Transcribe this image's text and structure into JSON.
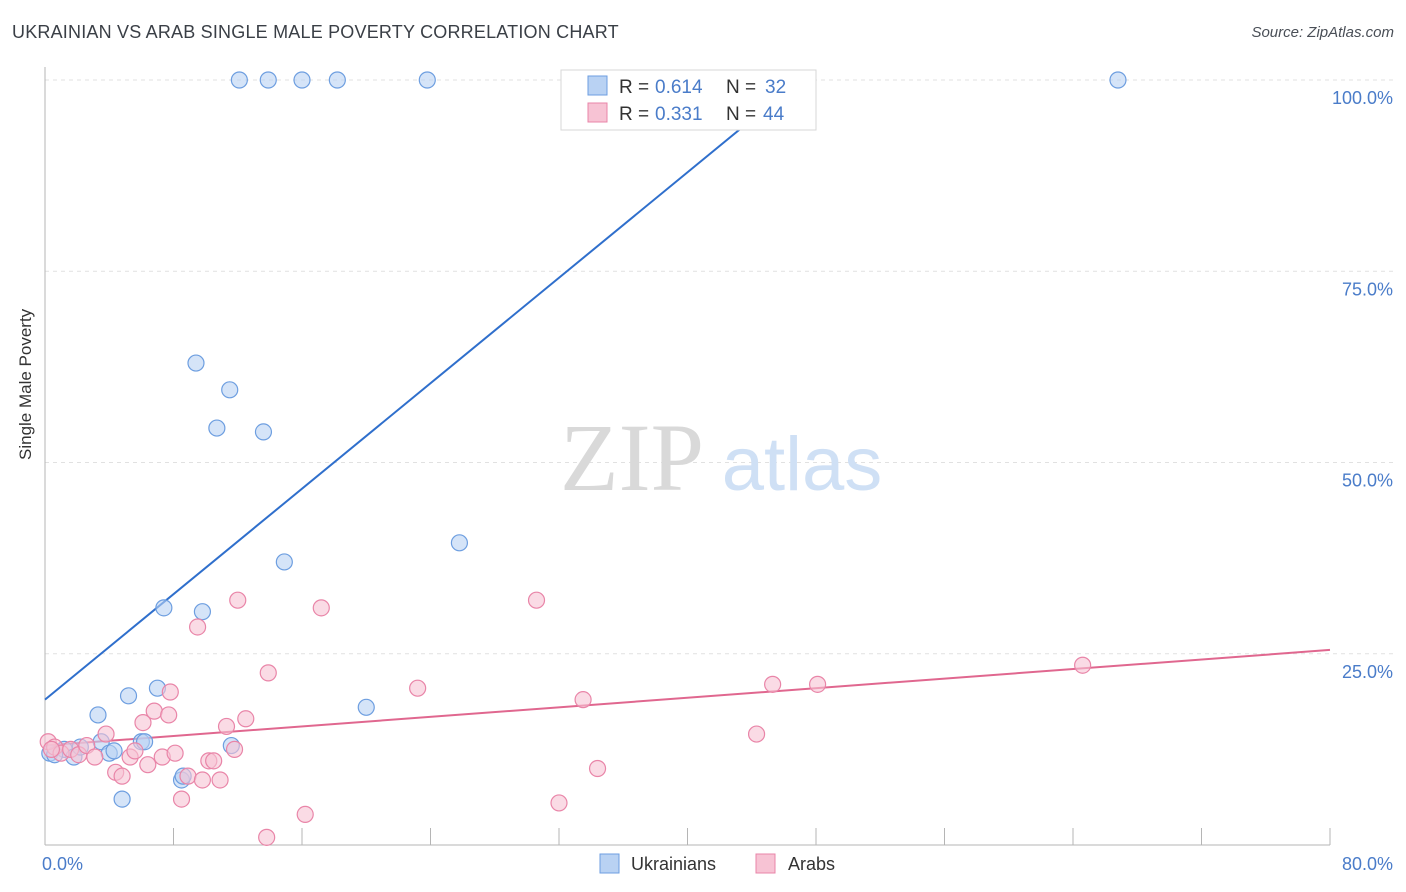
{
  "header": {
    "title": "UKRAINIAN VS ARAB SINGLE MALE POVERTY CORRELATION CHART",
    "source": "Source: ZipAtlas.com"
  },
  "watermark": {
    "zip": "ZIP",
    "atlas": "atlas"
  },
  "colors": {
    "blue": "#6d9ee0",
    "blue_fill": "#b9d2f3",
    "blue_line": "#2f6fcc",
    "pink": "#e985a8",
    "pink_fill": "#f7c3d4",
    "pink_line": "#e0678f",
    "axis_text": "#4a7cc9",
    "grid": "#e1e1e1"
  },
  "chart_data": {
    "type": "scatter",
    "title": "UKRAINIAN VS ARAB SINGLE MALE POVERTY CORRELATION CHART",
    "xlabel": "",
    "ylabel": "Single Male Poverty",
    "xlim": [
      0,
      80
    ],
    "ylim": [
      0,
      100
    ],
    "x_tick_labels": [
      "0.0%",
      "80.0%"
    ],
    "y_ticks": [
      25,
      50,
      75,
      100
    ],
    "y_tick_labels": [
      "25.0%",
      "50.0%",
      "75.0%",
      "100.0%"
    ],
    "grid": true,
    "legend_position": "top-center",
    "stats": [
      {
        "r_label": "R = ",
        "r_value": "0.614",
        "n_label": "N = ",
        "n_value": "32"
      },
      {
        "r_label": "R = ",
        "r_value": "0.331",
        "n_label": "N = ",
        "n_value": "44"
      }
    ],
    "series": [
      {
        "name": "Ukrainians",
        "color": "#6d9ee0",
        "trend": {
          "x0": 0,
          "y0": 19,
          "x1": 47,
          "y1": 100
        },
        "points": [
          [
            0.3,
            12
          ],
          [
            1.2,
            12.5
          ],
          [
            1.8,
            11.5
          ],
          [
            3.3,
            17
          ],
          [
            3.5,
            13.5
          ],
          [
            4.0,
            12
          ],
          [
            4.3,
            12.3
          ],
          [
            5.2,
            19.5
          ],
          [
            6.0,
            13.5
          ],
          [
            6.2,
            13.5
          ],
          [
            7.0,
            20.5
          ],
          [
            7.4,
            31
          ],
          [
            8.5,
            8.5
          ],
          [
            8.6,
            9
          ],
          [
            9.4,
            63
          ],
          [
            9.8,
            30.5
          ],
          [
            10.7,
            54.5
          ],
          [
            11.5,
            59.5
          ],
          [
            11.6,
            13
          ],
          [
            12.1,
            100
          ],
          [
            13.6,
            54
          ],
          [
            13.9,
            100
          ],
          [
            14.9,
            37
          ],
          [
            16.0,
            100
          ],
          [
            18.2,
            100
          ],
          [
            20.0,
            18
          ],
          [
            23.8,
            100
          ],
          [
            25.8,
            39.5
          ],
          [
            66.8,
            100
          ],
          [
            0.6,
            11.8
          ],
          [
            2.2,
            12.8
          ],
          [
            4.8,
            6
          ]
        ]
      },
      {
        "name": "Arabs",
        "color": "#e985a8",
        "trend": {
          "x0": 0,
          "y0": 13,
          "x1": 80,
          "y1": 25.5
        },
        "points": [
          [
            0.2,
            13.5
          ],
          [
            0.6,
            12.8
          ],
          [
            1.0,
            12
          ],
          [
            1.6,
            12.5
          ],
          [
            2.1,
            11.8
          ],
          [
            2.6,
            13
          ],
          [
            3.1,
            11.5
          ],
          [
            3.8,
            14.5
          ],
          [
            4.4,
            9.5
          ],
          [
            4.8,
            9
          ],
          [
            5.3,
            11.5
          ],
          [
            5.6,
            12.3
          ],
          [
            6.1,
            16
          ],
          [
            6.4,
            10.5
          ],
          [
            6.8,
            17.5
          ],
          [
            7.3,
            11.5
          ],
          [
            7.7,
            17
          ],
          [
            7.8,
            20
          ],
          [
            8.1,
            12
          ],
          [
            8.5,
            6
          ],
          [
            8.9,
            9
          ],
          [
            9.5,
            28.5
          ],
          [
            9.8,
            8.5
          ],
          [
            10.2,
            11
          ],
          [
            10.5,
            11
          ],
          [
            10.9,
            8.5
          ],
          [
            11.3,
            15.5
          ],
          [
            11.8,
            12.5
          ],
          [
            12.0,
            32
          ],
          [
            12.5,
            16.5
          ],
          [
            13.8,
            1
          ],
          [
            13.9,
            22.5
          ],
          [
            16.2,
            4
          ],
          [
            17.2,
            31
          ],
          [
            23.2,
            20.5
          ],
          [
            30.6,
            32
          ],
          [
            32.0,
            5.5
          ],
          [
            33.5,
            19
          ],
          [
            34.4,
            10
          ],
          [
            44.3,
            14.5
          ],
          [
            45.3,
            21
          ],
          [
            48.1,
            21
          ],
          [
            64.6,
            23.5
          ],
          [
            0.4,
            12.5
          ]
        ]
      }
    ]
  }
}
